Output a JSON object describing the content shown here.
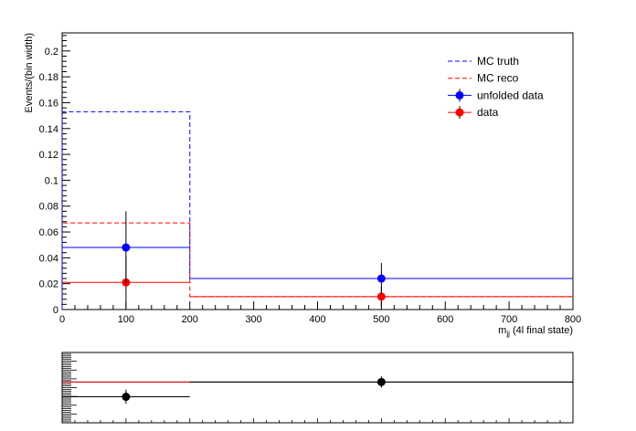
{
  "chart_data": [
    {
      "type": "histogram",
      "ylabel": "Events/(bin width)",
      "xlabel_main": "m",
      "xlabel_sub": "jj",
      "xlabel_rest": " (4l final state)",
      "xlim": [
        0,
        800
      ],
      "ylim": [
        0,
        0.214
      ],
      "bin_edges": [
        0,
        200,
        800
      ],
      "x_ticks": [
        "0",
        "100",
        "200",
        "300",
        "400",
        "500",
        "600",
        "700",
        "800"
      ],
      "y_ticks": [
        "0",
        "0.02",
        "0.04",
        "0.06",
        "0.08",
        "0.1",
        "0.12",
        "0.14",
        "0.16",
        "0.18",
        "0.2"
      ],
      "legend_position": "top-right",
      "colors": {
        "truth": "#0000ff",
        "reco": "#ff0000",
        "unfolded": "#0000ff",
        "data": "#ff0000"
      },
      "series": [
        {
          "name": "MC truth",
          "style": "dashed",
          "values": [
            0.153,
            0.024
          ]
        },
        {
          "name": "MC reco",
          "style": "dashed",
          "values": [
            0.067,
            0.01
          ]
        },
        {
          "name": "unfolded data",
          "style": "points",
          "x": [
            100,
            500
          ],
          "values": [
            0.048,
            0.024
          ],
          "errors": [
            0.028,
            0.012
          ]
        },
        {
          "name": "data",
          "style": "points",
          "x": [
            100,
            500
          ],
          "values": [
            0.021,
            0.01
          ],
          "errors": [
            0.02,
            0.008
          ]
        }
      ]
    },
    {
      "type": "ratio",
      "xlim": [
        0,
        800
      ],
      "ylim": [
        0,
        1
      ],
      "points": [
        {
          "x": 100,
          "y": 0.37,
          "err": 0.1
        },
        {
          "x": 500,
          "y": 0.58,
          "err": 0.08
        }
      ],
      "reference_line": 0.58,
      "red_line": {
        "x0": 0,
        "x1": 200,
        "y": 0.58
      },
      "colors": {
        "points": "#000000",
        "red_line": "#ff0000"
      }
    }
  ]
}
